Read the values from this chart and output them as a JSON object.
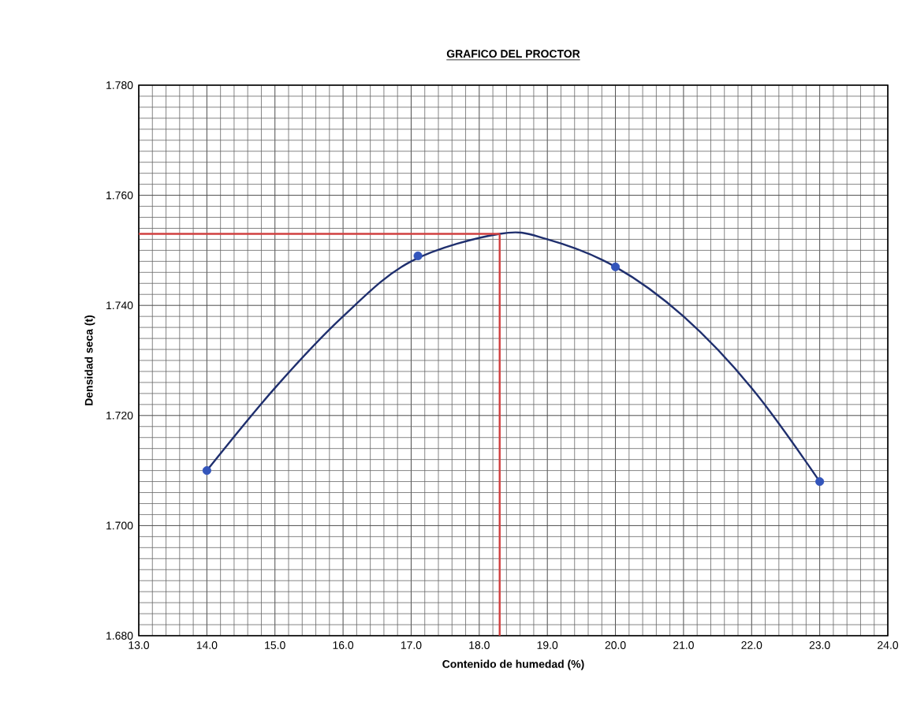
{
  "chart_data": {
    "type": "line",
    "title": "GRAFICO DEL PROCTOR",
    "xlabel": "Contenido de humedad (%)",
    "ylabel": "Densidad seca (t)",
    "xlim": [
      13.0,
      24.0
    ],
    "ylim": [
      1.68,
      1.78
    ],
    "xticks": [
      {
        "value": 13.0,
        "label": "13.0"
      },
      {
        "value": 14.0,
        "label": "14.0"
      },
      {
        "value": 15.0,
        "label": "15.0"
      },
      {
        "value": 16.0,
        "label": "16.0"
      },
      {
        "value": 17.0,
        "label": "17.0"
      },
      {
        "value": 18.0,
        "label": "18.0"
      },
      {
        "value": 19.0,
        "label": "19.0"
      },
      {
        "value": 20.0,
        "label": "20.0"
      },
      {
        "value": 21.0,
        "label": "21.0"
      },
      {
        "value": 22.0,
        "label": "22.0"
      },
      {
        "value": 23.0,
        "label": "23.0"
      },
      {
        "value": 24.0,
        "label": "24.0"
      }
    ],
    "yticks": [
      {
        "value": 1.68,
        "label": "1.680"
      },
      {
        "value": 1.7,
        "label": "1.700"
      },
      {
        "value": 1.72,
        "label": "1.720"
      },
      {
        "value": 1.74,
        "label": "1.740"
      },
      {
        "value": 1.76,
        "label": "1.760"
      },
      {
        "value": 1.78,
        "label": "1.780"
      }
    ],
    "grid": true,
    "series": [
      {
        "color": "#1f2f6e",
        "marker": "none",
        "x": [
          14.0,
          15.0,
          16.0,
          17.0,
          18.3,
          19.0,
          20.0,
          21.0,
          22.0,
          23.0
        ],
        "values": [
          1.71,
          1.725,
          1.738,
          1.748,
          1.753,
          1.752,
          1.747,
          1.738,
          1.725,
          1.708
        ]
      },
      {
        "color": "#d04040",
        "marker": "none",
        "x": [
          13.0,
          18.3
        ],
        "values": [
          1.753,
          1.753
        ]
      },
      {
        "color": "#d04040",
        "marker": "none",
        "x": [
          18.3,
          18.3
        ],
        "values": [
          1.753,
          1.68
        ]
      },
      {
        "type": "scatter",
        "color": "#3355bb",
        "marker": "circle",
        "x": [
          14.0,
          17.1,
          20.0,
          23.0
        ],
        "values": [
          1.71,
          1.749,
          1.747,
          1.708
        ]
      }
    ]
  }
}
